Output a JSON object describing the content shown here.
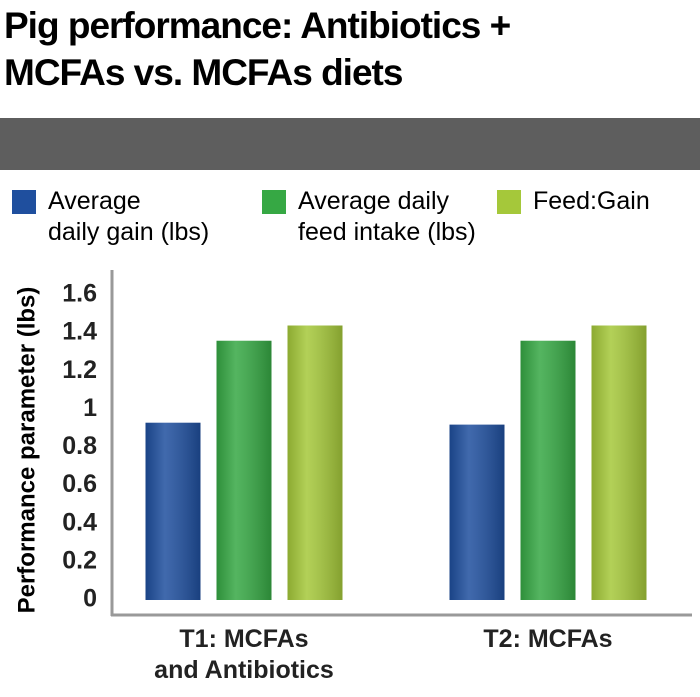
{
  "chart_data": {
    "type": "bar",
    "title": "Pig performance: Antibiotics +\nMCFAs vs. MCFAs diets",
    "y_label": "Performance parameter (lbs)",
    "categories": [
      "T1: MCFAs\nand Antibiotics",
      "T2: MCFAs"
    ],
    "series": [
      {
        "name": "Average\ndaily gain (lbs)",
        "color": "#1f4f9e",
        "values": [
          0.93,
          0.92
        ]
      },
      {
        "name": "Average daily\nfeed intake (lbs)",
        "color": "#36a844",
        "values": [
          1.36,
          1.36
        ]
      },
      {
        "name": "Feed:Gain",
        "color": "#a5c83a",
        "values": [
          1.44,
          1.44
        ]
      }
    ],
    "ylim": [
      0,
      1.6
    ],
    "yticks": [
      0,
      0.2,
      0.4,
      0.6,
      0.8,
      1,
      1.2,
      1.4,
      1.6
    ],
    "grid": false
  }
}
